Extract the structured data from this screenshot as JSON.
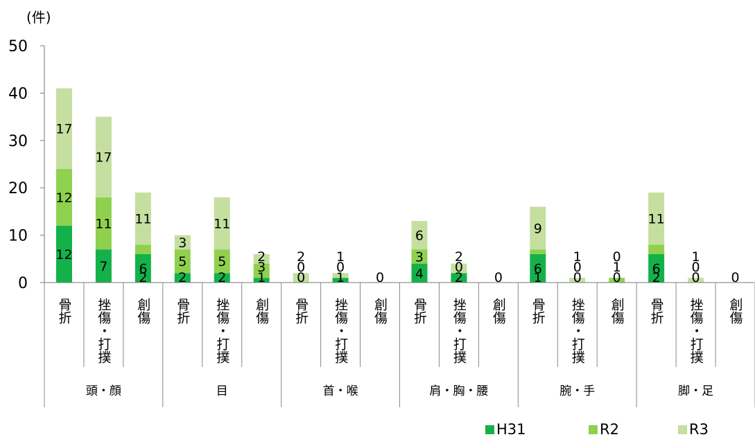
{
  "chart_data": {
    "type": "bar",
    "stacked": true,
    "ylabel": "(件)",
    "ylim": [
      0,
      50
    ],
    "yticks": [
      "0",
      "10",
      "20",
      "30",
      "40",
      "50"
    ],
    "grid": false,
    "legend_position": "bottom-right",
    "groups": [
      {
        "name": "頭・顔",
        "categories": [
          "骨折",
          "挫傷・打撲",
          "創傷"
        ]
      },
      {
        "name": "目",
        "categories": [
          "骨折",
          "挫傷・打撲",
          "創傷"
        ]
      },
      {
        "name": "首・喉",
        "categories": [
          "骨折",
          "挫傷・打撲",
          "創傷"
        ]
      },
      {
        "name": "肩・胸・腰",
        "categories": [
          "骨折",
          "挫傷・打撲",
          "創傷"
        ]
      },
      {
        "name": "腕・手",
        "categories": [
          "骨折",
          "挫傷・打撲",
          "創傷"
        ]
      },
      {
        "name": "脚・足",
        "categories": [
          "骨折",
          "挫傷・打撲",
          "創傷"
        ]
      }
    ],
    "categories": [
      "骨折",
      "挫傷・打撲",
      "創傷",
      "骨折",
      "挫傷・打撲",
      "創傷",
      "骨折",
      "挫傷・打撲",
      "創傷",
      "骨折",
      "挫傷・打撲",
      "創傷",
      "骨折",
      "挫傷・打撲",
      "創傷",
      "骨折",
      "挫傷・打撲",
      "創傷"
    ],
    "series": [
      {
        "name": "H31",
        "color": "#14b14b",
        "values": [
          12,
          7,
          6,
          2,
          2,
          1,
          0,
          1,
          0,
          4,
          2,
          0,
          6,
          0,
          0,
          6,
          0,
          0
        ]
      },
      {
        "name": "R2",
        "color": "#8fd14f",
        "values": [
          12,
          11,
          2,
          5,
          5,
          3,
          0,
          0,
          0,
          3,
          0,
          0,
          1,
          0,
          1,
          2,
          0,
          0
        ]
      },
      {
        "name": "R3",
        "color": "#c4dfa0",
        "values": [
          17,
          17,
          11,
          3,
          11,
          2,
          2,
          1,
          0,
          6,
          2,
          0,
          9,
          1,
          0,
          11,
          1,
          0
        ]
      }
    ]
  }
}
